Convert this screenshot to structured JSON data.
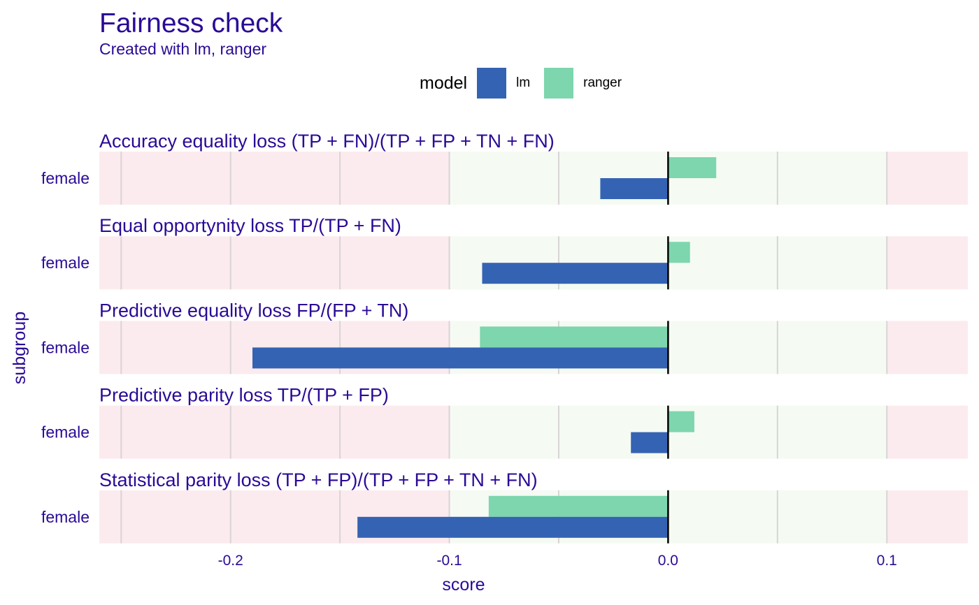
{
  "chart_data": {
    "type": "bar",
    "orientation": "horizontal",
    "title": "Fairness check",
    "subtitle": "Created with lm, ranger",
    "xlabel": "score",
    "ylabel": "subgroup",
    "xlim": [
      -0.26,
      0.137
    ],
    "xticks": [
      -0.2,
      -0.1,
      0.0,
      0.1
    ],
    "xtick_labels": [
      "-0.2",
      "-0.1",
      "0.0",
      "0.1"
    ],
    "fair_range": [
      -0.1,
      0.1
    ],
    "legend": {
      "title": "model",
      "position": "top",
      "entries": [
        {
          "name": "lm",
          "color": "#3563b3"
        },
        {
          "name": "ranger",
          "color": "#7dd6ad"
        }
      ]
    },
    "colors": {
      "unfair_band": "#fcebee",
      "fair_band": "#f5faf3",
      "gridline": "#d9d4d6",
      "zero_line": "#000000",
      "text": "#2a0a96"
    },
    "panels": [
      {
        "title": "Accuracy equality loss   (TP + FN)/(TP + FP + TN + FN)",
        "subgroup": "female",
        "values": {
          "lm": -0.031,
          "ranger": 0.022
        }
      },
      {
        "title": "Equal opportynity loss    TP/(TP + FN)",
        "subgroup": "female",
        "values": {
          "lm": -0.085,
          "ranger": 0.01
        }
      },
      {
        "title": "Predictive equality loss   FP/(FP + TN)",
        "subgroup": "female",
        "values": {
          "lm": -0.19,
          "ranger": -0.086
        }
      },
      {
        "title": "Predictive parity loss    TP/(TP + FP)",
        "subgroup": "female",
        "values": {
          "lm": -0.017,
          "ranger": 0.012
        }
      },
      {
        "title": "Statistical parity loss   (TP + FP)/(TP + FP + TN + FN)",
        "subgroup": "female",
        "values": {
          "lm": -0.142,
          "ranger": -0.082
        }
      }
    ]
  }
}
